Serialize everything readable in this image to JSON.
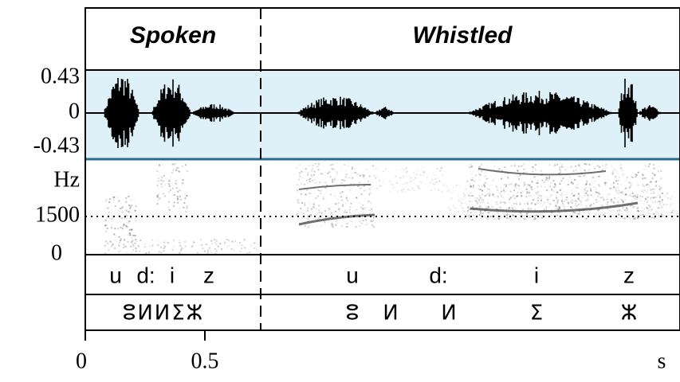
{
  "header": {
    "spoken": "Spoken",
    "whistled": "Whistled"
  },
  "waveform_axis": [
    "0.43",
    "0",
    "-0.43"
  ],
  "spectrogram_axis": {
    "unit": "Hz",
    "ticks": [
      "1500",
      "0"
    ]
  },
  "spoken": {
    "phonemes": [
      "u",
      "d:",
      "i",
      "z"
    ],
    "tifinagh": "ⵓⵍⵍⵉⵣ"
  },
  "whistled": {
    "phonemes": [
      "u",
      "d:",
      "i",
      "z"
    ],
    "tifinagh": [
      "ⵓ",
      "ⵍ",
      "ⵍ",
      "ⵉ",
      "ⵣ"
    ]
  },
  "time_axis": {
    "ticks": [
      "0",
      "0.5"
    ],
    "unit": "s"
  }
}
